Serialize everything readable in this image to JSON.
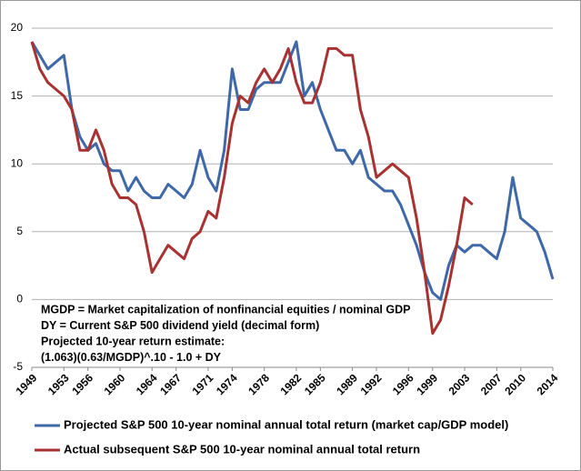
{
  "chart_data": {
    "type": "line",
    "x": [
      1949,
      1950,
      1951,
      1952,
      1953,
      1954,
      1955,
      1956,
      1957,
      1958,
      1959,
      1960,
      1961,
      1962,
      1963,
      1964,
      1965,
      1966,
      1967,
      1968,
      1969,
      1970,
      1971,
      1972,
      1973,
      1974,
      1975,
      1976,
      1977,
      1978,
      1979,
      1980,
      1981,
      1982,
      1983,
      1984,
      1985,
      1986,
      1987,
      1988,
      1989,
      1990,
      1991,
      1992,
      1993,
      1994,
      1995,
      1996,
      1997,
      1998,
      1999,
      2000,
      2001,
      2002,
      2003,
      2004,
      2005,
      2006,
      2007,
      2008,
      2009,
      2010,
      2011,
      2012,
      2013,
      2014
    ],
    "series": [
      {
        "name": "Projected S&P 500 10-year nominal annual total return (market cap/GDP model)",
        "color": "#3e68a8",
        "values": [
          19,
          18,
          17,
          17.5,
          18,
          14,
          12,
          11,
          11.5,
          10,
          9.5,
          9.5,
          8,
          9,
          8,
          7.5,
          7.5,
          8.5,
          8,
          7.5,
          8.5,
          11,
          9,
          8,
          11,
          17,
          14,
          14,
          15.5,
          16,
          16,
          16,
          17.5,
          19,
          15,
          16,
          14,
          12.5,
          11,
          11,
          10,
          11,
          9,
          8.5,
          8,
          8,
          7,
          5.5,
          4,
          2,
          0.5,
          0,
          2.5,
          4,
          3.5,
          4,
          4,
          3.5,
          3,
          5,
          9,
          6,
          5.5,
          5,
          3.5,
          1.5
        ]
      },
      {
        "name": "Actual subsequent S&P 500 10-year nominal annual total return",
        "color": "#a83232",
        "values": [
          19,
          17,
          16,
          15.5,
          15,
          14,
          11,
          11,
          12.5,
          11,
          8.5,
          7.5,
          7.5,
          7,
          5,
          2,
          3,
          4,
          3.5,
          3,
          4.5,
          5,
          6.5,
          6,
          9,
          13,
          15,
          14.5,
          16,
          17,
          16,
          17,
          18.5,
          16,
          14.5,
          14.5,
          16,
          18.5,
          18.5,
          18,
          18,
          14,
          12,
          9,
          9.5,
          10,
          9.5,
          9,
          6,
          2,
          -2.5,
          -1.5,
          1,
          4,
          7.5,
          7,
          null,
          null,
          null,
          null,
          null,
          null,
          null,
          null,
          null,
          null
        ]
      }
    ],
    "xlim": [
      1949,
      2014
    ],
    "xticks": [
      1949,
      1953,
      1956,
      1960,
      1964,
      1967,
      1971,
      1974,
      1978,
      1982,
      1985,
      1989,
      1992,
      1996,
      1999,
      2003,
      2007,
      2010,
      2014
    ],
    "ylim": [
      -5,
      20
    ],
    "yticks": [
      -5,
      0,
      5,
      10,
      15,
      20
    ],
    "grid": true,
    "legend": "bottom",
    "annotations": [
      "MGDP = Market capitalization of nonfinancial equities / nominal GDP",
      "DY = Current S&P 500 dividend yield (decimal form)",
      "Projected 10-year return estimate:",
      "(1.063)(0.63/MGDP)^.10 - 1.0 + DY"
    ]
  }
}
